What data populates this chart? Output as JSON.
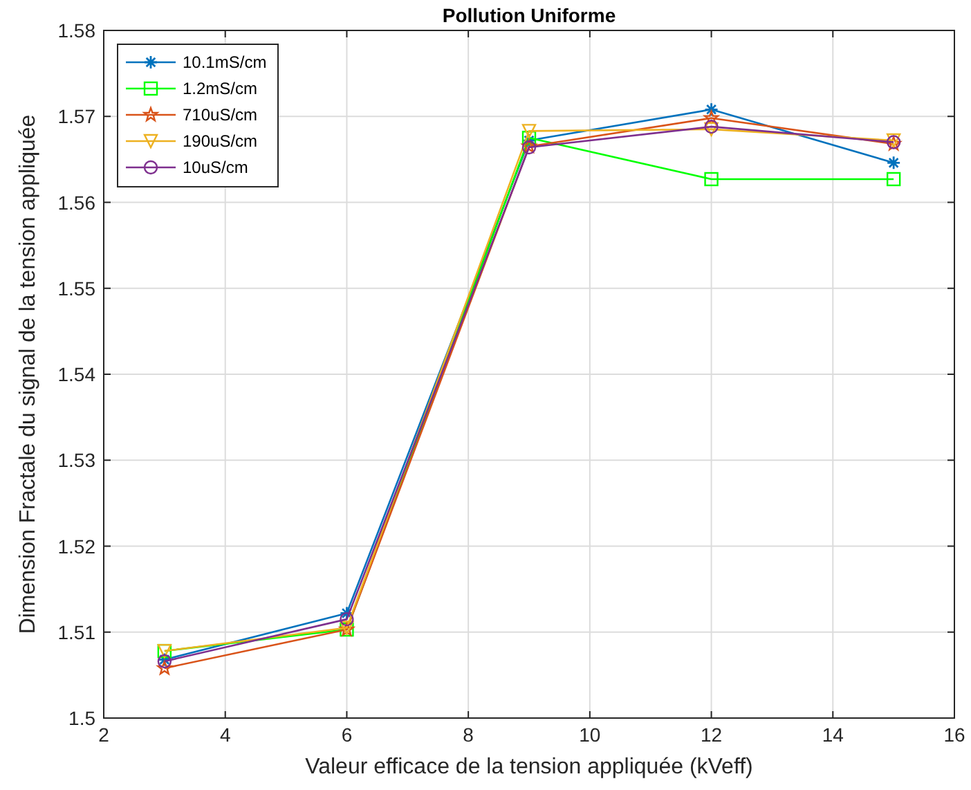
{
  "chart_data": {
    "type": "line",
    "title": "Pollution Uniforme",
    "xlabel": "Valeur efficace de la tension appliquée (kVeff)",
    "ylabel": "Dimension Fractale du signal de la tension appliquée",
    "x": [
      3,
      6,
      9,
      12,
      15
    ],
    "series": [
      {
        "name": "10.1mS/cm",
        "color": "#0072bd",
        "marker": "cross",
        "values": [
          1.5068,
          1.5122,
          1.5672,
          1.5708,
          1.5646
        ]
      },
      {
        "name": "1.2mS/cm",
        "color": "#00ff00",
        "marker": "square",
        "values": [
          1.5078,
          1.5103,
          1.5675,
          1.5627,
          1.5627
        ]
      },
      {
        "name": "710uS/cm",
        "color": "#d95319",
        "marker": "star",
        "values": [
          1.5058,
          1.5103,
          1.5665,
          1.5698,
          1.5668
        ]
      },
      {
        "name": "190uS/cm",
        "color": "#edb120",
        "marker": "triangle",
        "values": [
          1.5078,
          1.5105,
          1.5683,
          1.5685,
          1.5672
        ]
      },
      {
        "name": "10uS/cm",
        "color": "#7e2f8e",
        "marker": "circle",
        "values": [
          1.5066,
          1.5115,
          1.5664,
          1.5688,
          1.567
        ]
      }
    ],
    "xlim": [
      2,
      16
    ],
    "xticks": [
      2,
      4,
      6,
      8,
      10,
      12,
      14,
      16
    ],
    "ylim": [
      1.5,
      1.58
    ],
    "yticks": [
      1.5,
      1.51,
      1.52,
      1.53,
      1.54,
      1.55,
      1.56,
      1.57,
      1.58
    ],
    "grid": true,
    "legend": "top left",
    "line_style": "solid"
  }
}
